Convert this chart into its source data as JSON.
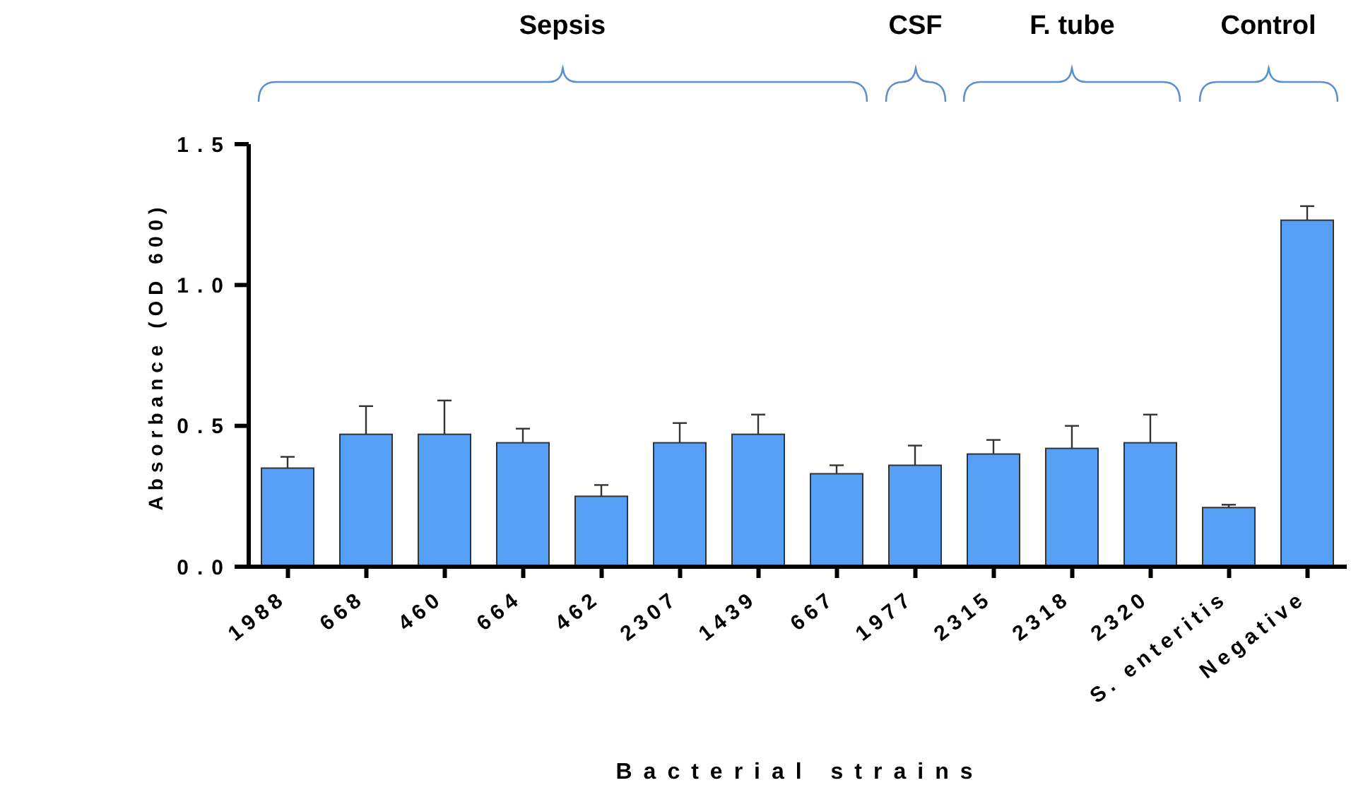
{
  "chart_data": {
    "type": "bar",
    "xlabel": "Bacterial strains",
    "ylabel": "Absorbance (OD 600)",
    "categories": [
      "1988",
      "668",
      "460",
      "664",
      "462",
      "2307",
      "1439",
      "667",
      "1977",
      "2315",
      "2318",
      "2320",
      "S. enteritis",
      "Negative"
    ],
    "values": [
      0.35,
      0.47,
      0.47,
      0.44,
      0.25,
      0.44,
      0.47,
      0.33,
      0.36,
      0.4,
      0.42,
      0.44,
      0.21,
      1.23
    ],
    "errors": [
      [
        0.35,
        0.39
      ],
      [
        0.47,
        0.57
      ],
      [
        0.47,
        0.59
      ],
      [
        0.44,
        0.49
      ],
      [
        0.25,
        0.29
      ],
      [
        0.44,
        0.51
      ],
      [
        0.47,
        0.54
      ],
      [
        0.33,
        0.36
      ],
      [
        0.36,
        0.43
      ],
      [
        0.4,
        0.45
      ],
      [
        0.42,
        0.5
      ],
      [
        0.44,
        0.54
      ],
      [
        0.21,
        0.22
      ],
      [
        1.23,
        1.28
      ]
    ],
    "color": "#559ff7",
    "ylim": [
      0,
      1.5
    ],
    "yticks": [
      {
        "value": 0,
        "label": "0.0"
      },
      {
        "value": 0.5,
        "label": "0.5"
      },
      {
        "value": 1,
        "label": "1.0"
      },
      {
        "value": 1.5,
        "label": "1.5"
      }
    ],
    "annotations": [
      "Sepsis",
      "CSF",
      "F. tube",
      "Control"
    ]
  }
}
